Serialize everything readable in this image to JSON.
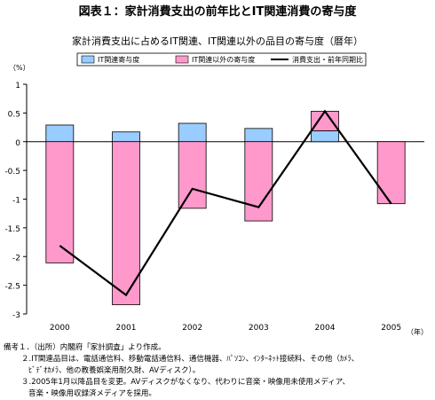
{
  "figure_title": "図表１：家計消費支出の前年比とIT関連消費の寄与度",
  "chart_data": {
    "type": "bar",
    "title": "家計消費支出に占めるIT関連、IT関連以外の品目の寄与度（暦年）",
    "ylabel": "（%）",
    "xlabel": "（年）",
    "ylim": [
      -3,
      1
    ],
    "yticks": [
      "1",
      "0.5",
      "0",
      "-0.5",
      "-1",
      "-1.5",
      "-2",
      "-2.5",
      "-3"
    ],
    "ytick_values": [
      1,
      0.5,
      0,
      -0.5,
      -1,
      -1.5,
      -2,
      -2.5,
      -3
    ],
    "categories": [
      "2000",
      "2001",
      "2002",
      "2003",
      "2004",
      "2005"
    ],
    "stacked": true,
    "grid": false,
    "legend_position": "top",
    "series": [
      {
        "name": "IT関連寄与度",
        "kind": "bar",
        "color": "#99ccff",
        "values": [
          0.29,
          0.17,
          0.32,
          0.23,
          0.19,
          0.0
        ]
      },
      {
        "name": "IT関連以外の寄与度",
        "kind": "bar",
        "color": "#ff99cc",
        "values": [
          -2.11,
          -2.84,
          -1.16,
          -1.38,
          0.34,
          -1.08
        ]
      },
      {
        "name": "消費支出・前年同期比",
        "kind": "line",
        "color": "#000000",
        "values": [
          -1.81,
          -2.67,
          -0.82,
          -1.14,
          0.53,
          -1.08
        ]
      }
    ]
  },
  "notes": [
    "備考１．（出所）内閣府「家計調査」より作成。",
    "２.IT関連品目は、電話通信料、移動電話通信料、通信機器、ﾊﾟｿｺﾝ、ｲﾝﾀｰﾈｯﾄ接続料、その他（ｶﾒﾗ、",
    "ﾋﾞﾃﾞｵｶﾒﾗ、他の教養娯楽用耐久財、AVディスク）。",
    "３.2005年1月以降品目を変更。AVディスクがなくなり、代わりに音楽・映像用未使用メディア、",
    "音楽・映像用収録済メディアを採用。"
  ]
}
